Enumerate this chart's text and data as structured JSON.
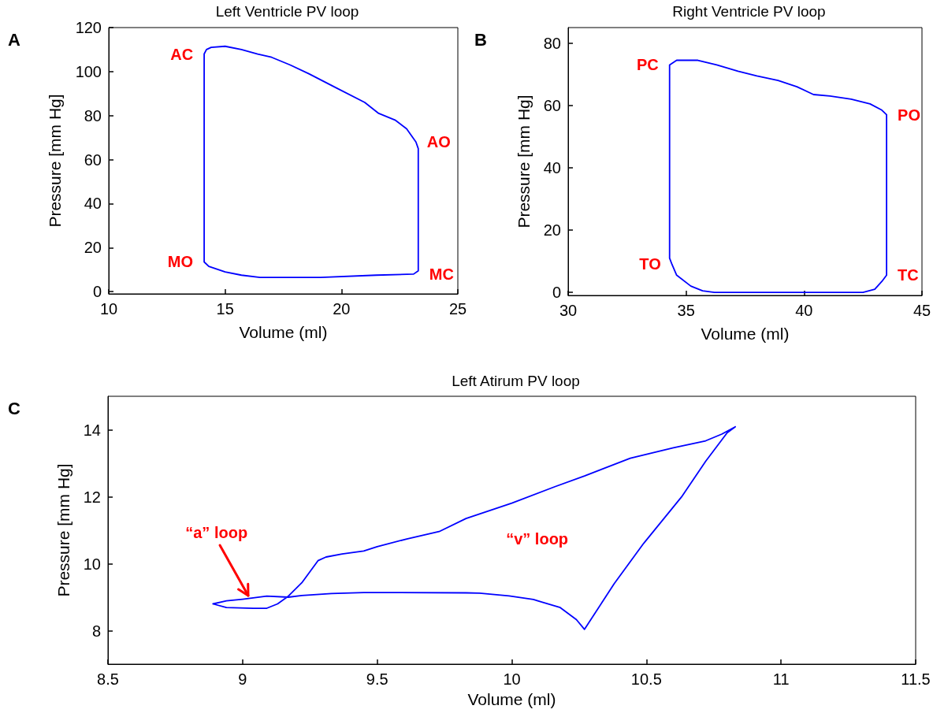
{
  "chart_data": [
    {
      "type": "line",
      "title": "Left Ventricle PV loop",
      "xlabel": "Volume (ml)",
      "ylabel": "Pressure [mm Hg]",
      "series": [
        {
          "color": "#0000ff",
          "x": [
            14.1,
            14.1,
            14.2,
            14.4,
            15.0,
            15.7,
            16.4,
            17.0,
            17.8,
            18.6,
            19.7,
            21.0,
            21.6,
            22.3,
            22.8,
            23.2,
            23.3,
            23.3,
            null,
            14.1,
            14.3,
            15.0,
            15.7,
            16.5,
            19.1,
            21.5,
            23.1,
            23.3
          ],
          "values": [
            13.5,
            108,
            110,
            111,
            111.5,
            110,
            108,
            106.5,
            103,
            99,
            93,
            86,
            81,
            78,
            74,
            68,
            65,
            9.5,
            null,
            13.5,
            11.5,
            9,
            7.5,
            6.5,
            6.5,
            7.5,
            8,
            9.5
          ]
        }
      ],
      "xlim": [
        10,
        25
      ],
      "ylim": [
        -1,
        120
      ],
      "xticks": [
        10,
        15,
        20,
        25
      ],
      "yticks": [
        0,
        20,
        40,
        60,
        80,
        100,
        120
      ],
      "annotations": [
        "A",
        {
          "text": "AC",
          "x": 14.1,
          "y": 108
        },
        {
          "text": "AO",
          "x": 23.2,
          "y": 68
        },
        {
          "text": "MO",
          "x": 14.1,
          "y": 13.5
        },
        {
          "text": "MC",
          "x": 23.3,
          "y": 8
        }
      ]
    },
    {
      "type": "line",
      "title": "Right Ventricle PV loop",
      "xlabel": "Volume (ml)",
      "ylabel": "Pressure [mm Hg]",
      "series": [
        {
          "color": "#0000ff",
          "x": [
            34.3,
            34.4,
            34.6,
            35.5,
            36.3,
            37.2,
            38.0,
            38.9,
            39.7,
            40.4,
            41.1,
            42.0,
            42.8,
            43.3,
            43.5,
            43.5,
            null,
            34.3,
            34.3,
            34.4,
            34.6,
            35.2,
            35.7,
            36.2,
            41.1,
            42.5,
            43.0,
            43.3,
            43.5
          ],
          "values": [
            73,
            73.5,
            74.5,
            74.5,
            73,
            71,
            69.5,
            68,
            66,
            63.5,
            63,
            62,
            60.5,
            58.5,
            57,
            5.5,
            null,
            73,
            11,
            9,
            5.5,
            2,
            0.5,
            0,
            0,
            0,
            1,
            3.5,
            5.5
          ]
        }
      ],
      "xlim": [
        30,
        45
      ],
      "ylim": [
        -1,
        85
      ],
      "xticks": [
        30,
        35,
        40,
        45
      ],
      "yticks": [
        0,
        20,
        40,
        60,
        80
      ],
      "annotations": [
        "B",
        {
          "text": "PC",
          "x": 34.3,
          "y": 73
        },
        {
          "text": "PO",
          "x": 43.5,
          "y": 57
        },
        {
          "text": "TO",
          "x": 34.4,
          "y": 9
        },
        {
          "text": "TC",
          "x": 43.5,
          "y": 5.5
        }
      ]
    },
    {
      "type": "line",
      "title": "Left Atirum PV loop",
      "xlabel": "Volume (ml)",
      "ylabel": "Pressure [mm Hg]",
      "series": [
        {
          "color": "#0000ff",
          "x": [
            8.89,
            8.94,
            9.04,
            9.09,
            9.13,
            9.17,
            9.22,
            9.28,
            9.31,
            9.37,
            9.45,
            9.5,
            9.61,
            9.73,
            9.83,
            10.0,
            10.16,
            10.27,
            10.44,
            10.6,
            10.72,
            10.78,
            10.83,
            null,
            10.27,
            10.38,
            10.49,
            10.63,
            10.72,
            10.8,
            10.83,
            null,
            8.89,
            8.94,
            9.0,
            9.09,
            9.17,
            9.22,
            9.33,
            9.45,
            9.83,
            9.88,
            9.99,
            10.08,
            10.18,
            10.24,
            10.27
          ],
          "values": [
            8.8,
            8.69,
            8.67,
            8.67,
            8.8,
            9.03,
            9.43,
            10.09,
            10.2,
            10.29,
            10.38,
            10.51,
            10.74,
            10.96,
            11.35,
            11.81,
            12.3,
            12.62,
            13.15,
            13.46,
            13.67,
            13.87,
            14.09,
            null,
            8.04,
            9.4,
            10.61,
            11.99,
            13.06,
            13.91,
            14.09,
            null,
            8.8,
            8.89,
            8.94,
            9.03,
            9.0,
            9.05,
            9.11,
            9.14,
            9.13,
            9.12,
            9.04,
            8.93,
            8.69,
            8.33,
            8.04
          ]
        }
      ],
      "xlim": [
        8.5,
        11.5
      ],
      "ylim": [
        7,
        15
      ],
      "xticks": [
        8.5,
        9,
        9.5,
        10,
        10.5,
        11,
        11.5
      ],
      "yticks": [
        8,
        10,
        12,
        14
      ],
      "annotations": [
        "C",
        {
          "text": "“a” loop",
          "x": 9.02,
          "y": 8.96
        },
        "“v” loop"
      ]
    }
  ]
}
